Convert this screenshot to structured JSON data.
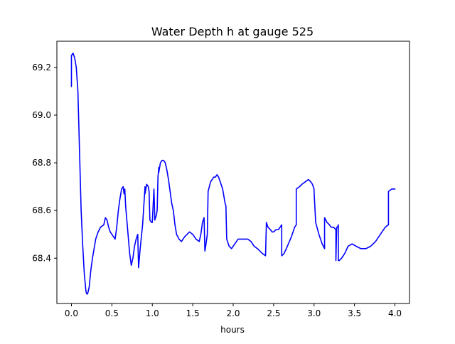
{
  "chart_data": {
    "type": "line",
    "title": "Water Depth h at gauge 525",
    "xlabel": "hours",
    "ylabel": "",
    "xlim": [
      -0.18,
      4.18
    ],
    "ylim": [
      68.21,
      69.31
    ],
    "xticks": [
      0.0,
      0.5,
      1.0,
      1.5,
      2.0,
      2.5,
      3.0,
      3.5,
      4.0
    ],
    "xtick_labels": [
      "0.0",
      "0.5",
      "1.0",
      "1.5",
      "2.0",
      "2.5",
      "3.0",
      "3.5",
      "4.0"
    ],
    "yticks": [
      68.4,
      68.6,
      68.8,
      69.0,
      69.2
    ],
    "ytick_labels": [
      "68.4",
      "68.6",
      "68.8",
      "69.0",
      "69.2"
    ],
    "grid": false,
    "legend": "none",
    "series": [
      {
        "name": "",
        "color": "#0000ff",
        "x": [
          0.0,
          0.0,
          0.02,
          0.04,
          0.06,
          0.08,
          0.1,
          0.12,
          0.14,
          0.16,
          0.18,
          0.19,
          0.2,
          0.22,
          0.24,
          0.26,
          0.28,
          0.3,
          0.33,
          0.36,
          0.4,
          0.42,
          0.44,
          0.46,
          0.48,
          0.5,
          0.52,
          0.54,
          0.56,
          0.58,
          0.6,
          0.62,
          0.64,
          0.65,
          0.66,
          0.67,
          0.68,
          0.7,
          0.72,
          0.74,
          0.76,
          0.78,
          0.8,
          0.82,
          0.83,
          0.85,
          0.88,
          0.91,
          0.91,
          0.93,
          0.95,
          0.96,
          0.97,
          0.99,
          1.0,
          1.02,
          1.03,
          1.03,
          1.04,
          1.05,
          1.06,
          1.07,
          1.08,
          1.08,
          1.1,
          1.12,
          1.14,
          1.16,
          1.18,
          1.2,
          1.22,
          1.24,
          1.26,
          1.28,
          1.3,
          1.33,
          1.36,
          1.4,
          1.43,
          1.46,
          1.5,
          1.54,
          1.58,
          1.6,
          1.62,
          1.64,
          1.65,
          1.66,
          1.68,
          1.69,
          1.72,
          1.76,
          1.78,
          1.8,
          1.82,
          1.84,
          1.87,
          1.9,
          1.91,
          1.92,
          1.95,
          1.98,
          2.02,
          2.06,
          2.12,
          2.18,
          2.22,
          2.26,
          2.3,
          2.36,
          2.4,
          2.41,
          2.41,
          2.43,
          2.46,
          2.48,
          2.5,
          2.53,
          2.56,
          2.58,
          2.6,
          2.6,
          2.63,
          2.67,
          2.72,
          2.76,
          2.78,
          2.78,
          2.82,
          2.85,
          2.89,
          2.93,
          2.96,
          2.98,
          3.0,
          3.0,
          3.02,
          3.06,
          3.1,
          3.13,
          3.13,
          3.16,
          3.19,
          3.21,
          3.24,
          3.27,
          3.27,
          3.28,
          3.29,
          3.3,
          3.3,
          3.31,
          3.34,
          3.38,
          3.42,
          3.47,
          3.52,
          3.58,
          3.64,
          3.7,
          3.76,
          3.82,
          3.88,
          3.92,
          3.92,
          3.96,
          4.0
        ],
        "y": [
          69.12,
          69.25,
          69.26,
          69.24,
          69.2,
          69.1,
          68.85,
          68.6,
          68.45,
          68.33,
          68.26,
          68.25,
          68.25,
          68.28,
          68.35,
          68.4,
          68.44,
          68.48,
          68.51,
          68.53,
          68.54,
          68.57,
          68.56,
          68.53,
          68.51,
          68.5,
          68.49,
          68.48,
          68.53,
          68.6,
          68.65,
          68.69,
          68.7,
          68.67,
          68.69,
          68.62,
          68.58,
          68.5,
          68.42,
          68.37,
          68.4,
          68.45,
          68.48,
          68.5,
          68.36,
          68.44,
          68.54,
          68.7,
          68.67,
          68.71,
          68.7,
          68.68,
          68.56,
          68.55,
          68.55,
          68.69,
          68.58,
          68.56,
          68.57,
          68.58,
          68.6,
          68.74,
          68.78,
          68.76,
          68.8,
          68.81,
          68.81,
          68.8,
          68.77,
          68.73,
          68.68,
          68.63,
          68.6,
          68.54,
          68.5,
          68.48,
          68.47,
          68.49,
          68.5,
          68.51,
          68.5,
          68.48,
          68.47,
          68.5,
          68.55,
          68.57,
          68.43,
          68.45,
          68.5,
          68.68,
          68.72,
          68.74,
          68.74,
          68.75,
          68.74,
          68.72,
          68.69,
          68.63,
          68.62,
          68.48,
          68.45,
          68.44,
          68.46,
          68.48,
          68.48,
          68.48,
          68.47,
          68.45,
          68.44,
          68.42,
          68.41,
          68.54,
          68.55,
          68.53,
          68.52,
          68.51,
          68.51,
          68.52,
          68.52,
          68.53,
          68.54,
          68.41,
          68.42,
          68.45,
          68.49,
          68.53,
          68.54,
          68.69,
          68.7,
          68.71,
          68.72,
          68.73,
          68.72,
          68.71,
          68.69,
          68.68,
          68.55,
          68.5,
          68.46,
          68.44,
          68.57,
          68.55,
          68.54,
          68.53,
          68.53,
          68.52,
          68.39,
          68.53,
          68.53,
          68.54,
          68.39,
          68.39,
          68.4,
          68.42,
          68.45,
          68.46,
          68.45,
          68.44,
          68.44,
          68.45,
          68.47,
          68.5,
          68.53,
          68.54,
          68.68,
          68.69,
          68.69
        ]
      }
    ]
  }
}
